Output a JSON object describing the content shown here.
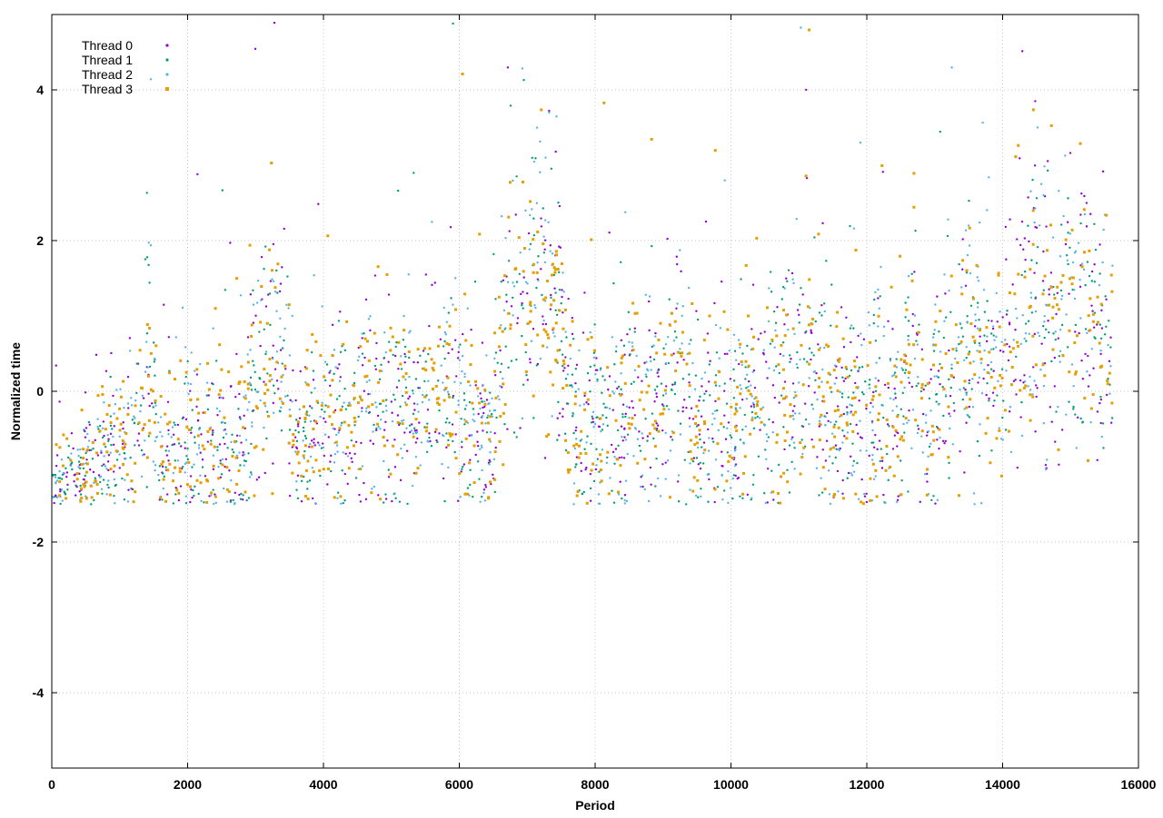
{
  "chart_data": {
    "type": "scatter",
    "title": "",
    "xlabel": "Period",
    "ylabel": "Normalized time",
    "xlim": [
      0,
      16000
    ],
    "ylim": [
      -5,
      5
    ],
    "xticks": [
      0,
      2000,
      4000,
      6000,
      8000,
      10000,
      12000,
      14000,
      16000
    ],
    "yticks": [
      -4,
      -2,
      0,
      2,
      4
    ],
    "xtick_labels": [
      "0",
      "2000",
      "4000",
      "6000",
      "8000",
      "10000",
      "12000",
      "14000",
      "16000"
    ],
    "ytick_labels": [
      "-4",
      "-2",
      "0",
      "2",
      "4"
    ],
    "grid": true,
    "legend_position": "top-left",
    "x_range_of_data": [
      0,
      15620
    ],
    "series": [
      {
        "name": "Thread 0",
        "color": "#9400d3",
        "marker": "dot"
      },
      {
        "name": "Thread 1",
        "color": "#009e73",
        "marker": "dot"
      },
      {
        "name": "Thread 2",
        "color": "#56b4e9",
        "marker": "dot"
      },
      {
        "name": "Thread 3",
        "color": "#e69f00",
        "marker": "square"
      }
    ],
    "trend_profile": [
      [
        0,
        -1.3,
        0.3
      ],
      [
        200,
        -1.15,
        0.35
      ],
      [
        600,
        -0.9,
        0.5
      ],
      [
        700,
        -0.6,
        0.9
      ],
      [
        900,
        -0.9,
        0.6
      ],
      [
        1300,
        -0.5,
        0.9
      ],
      [
        1450,
        0.3,
        1.5
      ],
      [
        1600,
        -0.9,
        0.6
      ],
      [
        2200,
        -0.6,
        1.0
      ],
      [
        2800,
        -0.7,
        0.8
      ],
      [
        3000,
        0.2,
        1.3
      ],
      [
        3400,
        0.6,
        1.4
      ],
      [
        3600,
        -0.6,
        0.9
      ],
      [
        4500,
        -0.3,
        1.1
      ],
      [
        5000,
        -0.1,
        1.2
      ],
      [
        5400,
        -0.4,
        1.0
      ],
      [
        5800,
        0.0,
        1.2
      ],
      [
        6200,
        -0.5,
        1.0
      ],
      [
        6500,
        -0.4,
        1.0
      ],
      [
        6700,
        0.9,
        1.5
      ],
      [
        7000,
        1.5,
        1.6
      ],
      [
        7500,
        1.0,
        1.5
      ],
      [
        7700,
        -0.5,
        1.0
      ],
      [
        8500,
        -0.3,
        1.1
      ],
      [
        9000,
        -0.2,
        1.2
      ],
      [
        9200,
        0.5,
        1.4
      ],
      [
        9500,
        -0.4,
        1.0
      ],
      [
        10500,
        -0.1,
        1.2
      ],
      [
        11000,
        0.5,
        1.5
      ],
      [
        11500,
        -0.3,
        1.1
      ],
      [
        12500,
        -0.2,
        1.2
      ],
      [
        12700,
        0.6,
        1.5
      ],
      [
        12900,
        -0.5,
        1.0
      ],
      [
        13200,
        0.5,
        1.4
      ],
      [
        14000,
        0.4,
        1.4
      ],
      [
        14300,
        1.2,
        1.5
      ],
      [
        15000,
        1.0,
        1.5
      ],
      [
        15620,
        0.8,
        1.5
      ]
    ]
  }
}
